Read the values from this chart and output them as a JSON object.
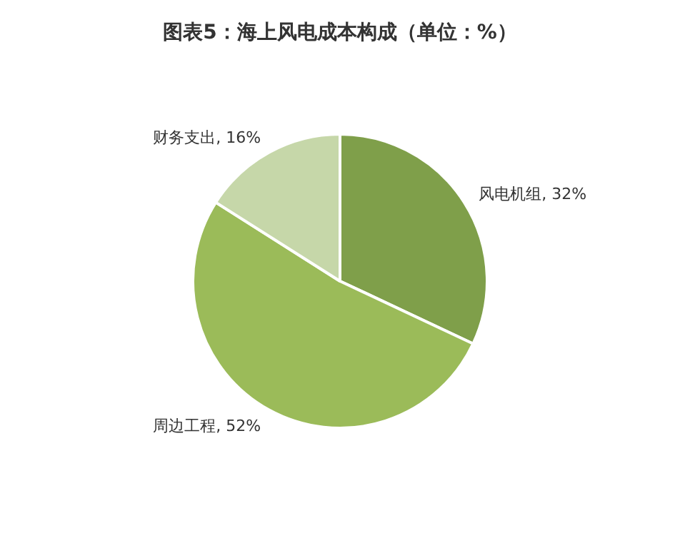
{
  "chart_data": {
    "type": "pie",
    "title": "图表5：海上风电成本构成（单位：%）",
    "categories": [
      "风电机组",
      "周边工程",
      "财务支出"
    ],
    "values": [
      32,
      52,
      16
    ],
    "colors": [
      "#7f9f4a",
      "#9bbb59",
      "#c6d7a9"
    ],
    "value_labels": [
      "32%",
      "52%",
      "16%"
    ],
    "legend": false
  }
}
